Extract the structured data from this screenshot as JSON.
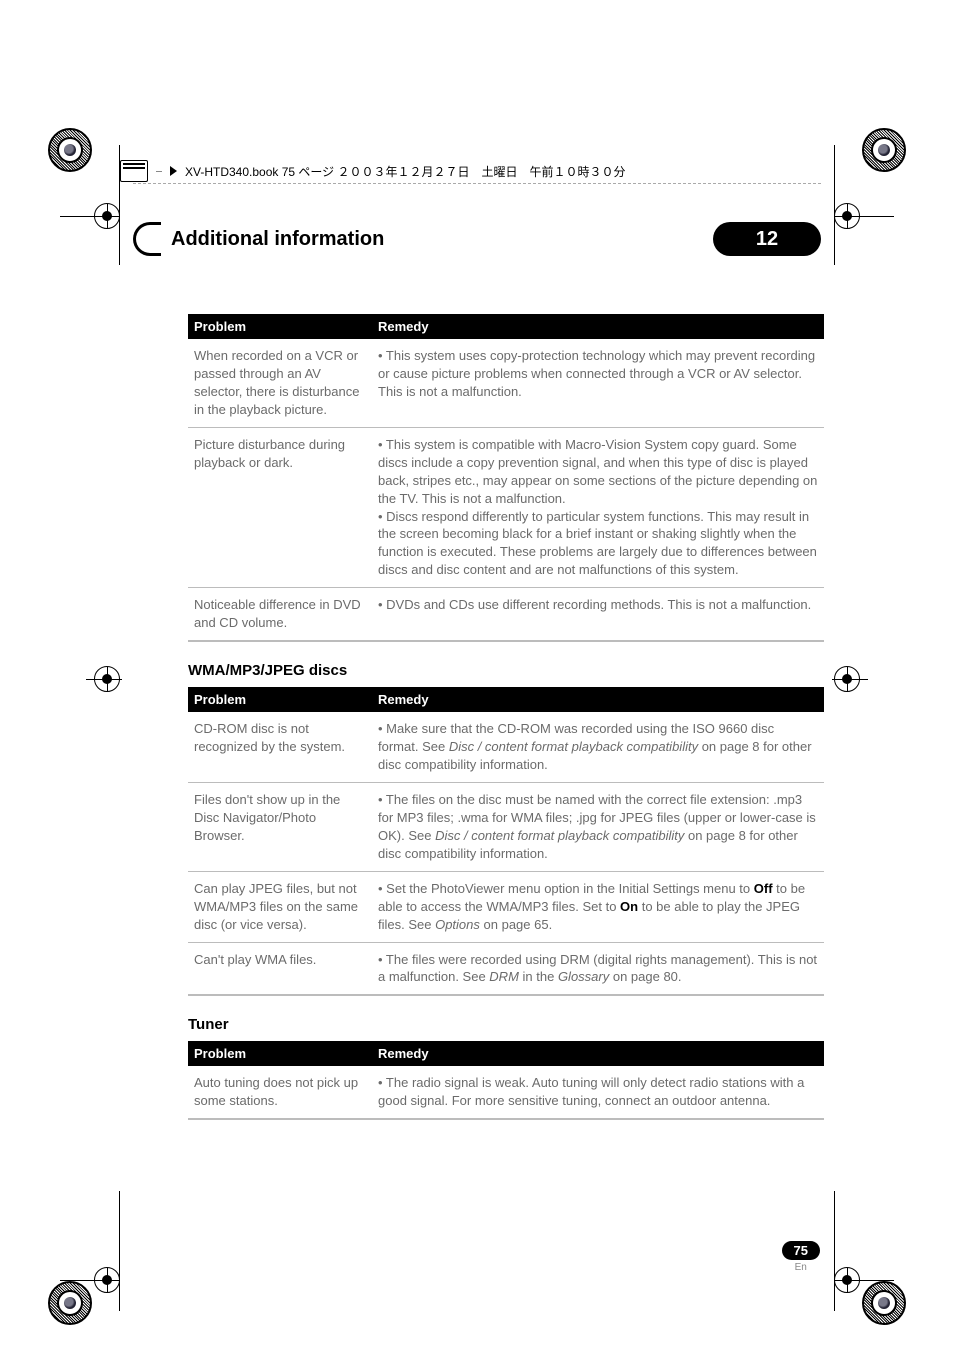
{
  "book_header": "XV-HTD340.book  75 ページ  ２００３年１２月２７日　土曜日　午前１０時３０分",
  "chapter": {
    "title": "Additional information",
    "number": "12"
  },
  "page": {
    "number": "75",
    "lang": "En"
  },
  "tables": {
    "first": {
      "headers": [
        "Problem",
        "Remedy"
      ],
      "rows": [
        {
          "problem": "When recorded on a VCR or passed through an AV selector, there is disturbance in the playback picture.",
          "remedy": "• This system uses copy-protection technology which may prevent recording or cause picture problems when connected through a VCR or AV selector. This is not a malfunction."
        },
        {
          "problem": "Picture disturbance during playback or dark.",
          "remedy": "• This system is compatible with Macro-Vision System copy guard. Some discs include a copy prevention signal, and when this type of disc is played back, stripes etc., may appear on some sections of the picture depending on the TV. This is not a malfunction.\n• Discs respond differently to particular system functions. This may result in the screen becoming black for a brief instant or shaking slightly when the function is executed. These problems are largely due to differences between discs and disc content and are not malfunctions of this system."
        },
        {
          "problem": "Noticeable difference in DVD and CD volume.",
          "remedy": "• DVDs and CDs use different recording methods. This is not a malfunction."
        }
      ]
    },
    "wma": {
      "title": "WMA/MP3/JPEG discs",
      "headers": [
        "Problem",
        "Remedy"
      ],
      "rows": [
        {
          "problem": "CD-ROM disc is not recognized by the system.",
          "remedy_pre": "• Make sure that the CD-ROM was recorded using the ISO 9660 disc format. See ",
          "remedy_ital": "Disc / content format playback compatibility",
          "remedy_post": " on page 8 for other disc compatibility information."
        },
        {
          "problem": "Files don't show up in the Disc Navigator/Photo Browser.",
          "remedy_pre": "• The files on the disc must be named with the correct file extension: .mp3 for MP3 files; .wma for WMA files; .jpg for JPEG files (upper or lower-case is OK). See ",
          "remedy_ital": "Disc / content format playback compatibility",
          "remedy_post": " on page 8 for other disc compatibility information."
        },
        {
          "problem": "Can play JPEG files, but not WMA/MP3 files on the same disc (or vice versa).",
          "remedy_pre": "• Set the PhotoViewer menu option in the Initial Settings menu to ",
          "remedy_b1": "Off",
          "remedy_mid": " to be able to access the WMA/MP3 files. Set to ",
          "remedy_b2": "On",
          "remedy_post2": " to be able to play the JPEG files. See ",
          "remedy_ital2": "Options",
          "remedy_post3": " on page 65."
        },
        {
          "problem": "Can't play WMA files.",
          "remedy_pre": "• The files were recorded using DRM (digital rights management). This is not a malfunction. See ",
          "remedy_ital": "DRM",
          "remedy_mid": " in the ",
          "remedy_ital2": "Glossary",
          "remedy_post": " on page 80."
        }
      ]
    },
    "tuner": {
      "title": "Tuner",
      "headers": [
        "Problem",
        "Remedy"
      ],
      "rows": [
        {
          "problem": "Auto tuning does not pick up some stations.",
          "remedy": "• The radio signal is weak. Auto tuning will only detect radio stations with a good signal. For more sensitive tuning, connect an outdoor antenna."
        }
      ]
    }
  },
  "colors": {
    "text_gray": "#6b6b6b",
    "rule_gray": "#bcbcbc",
    "black": "#000000",
    "white": "#ffffff"
  }
}
